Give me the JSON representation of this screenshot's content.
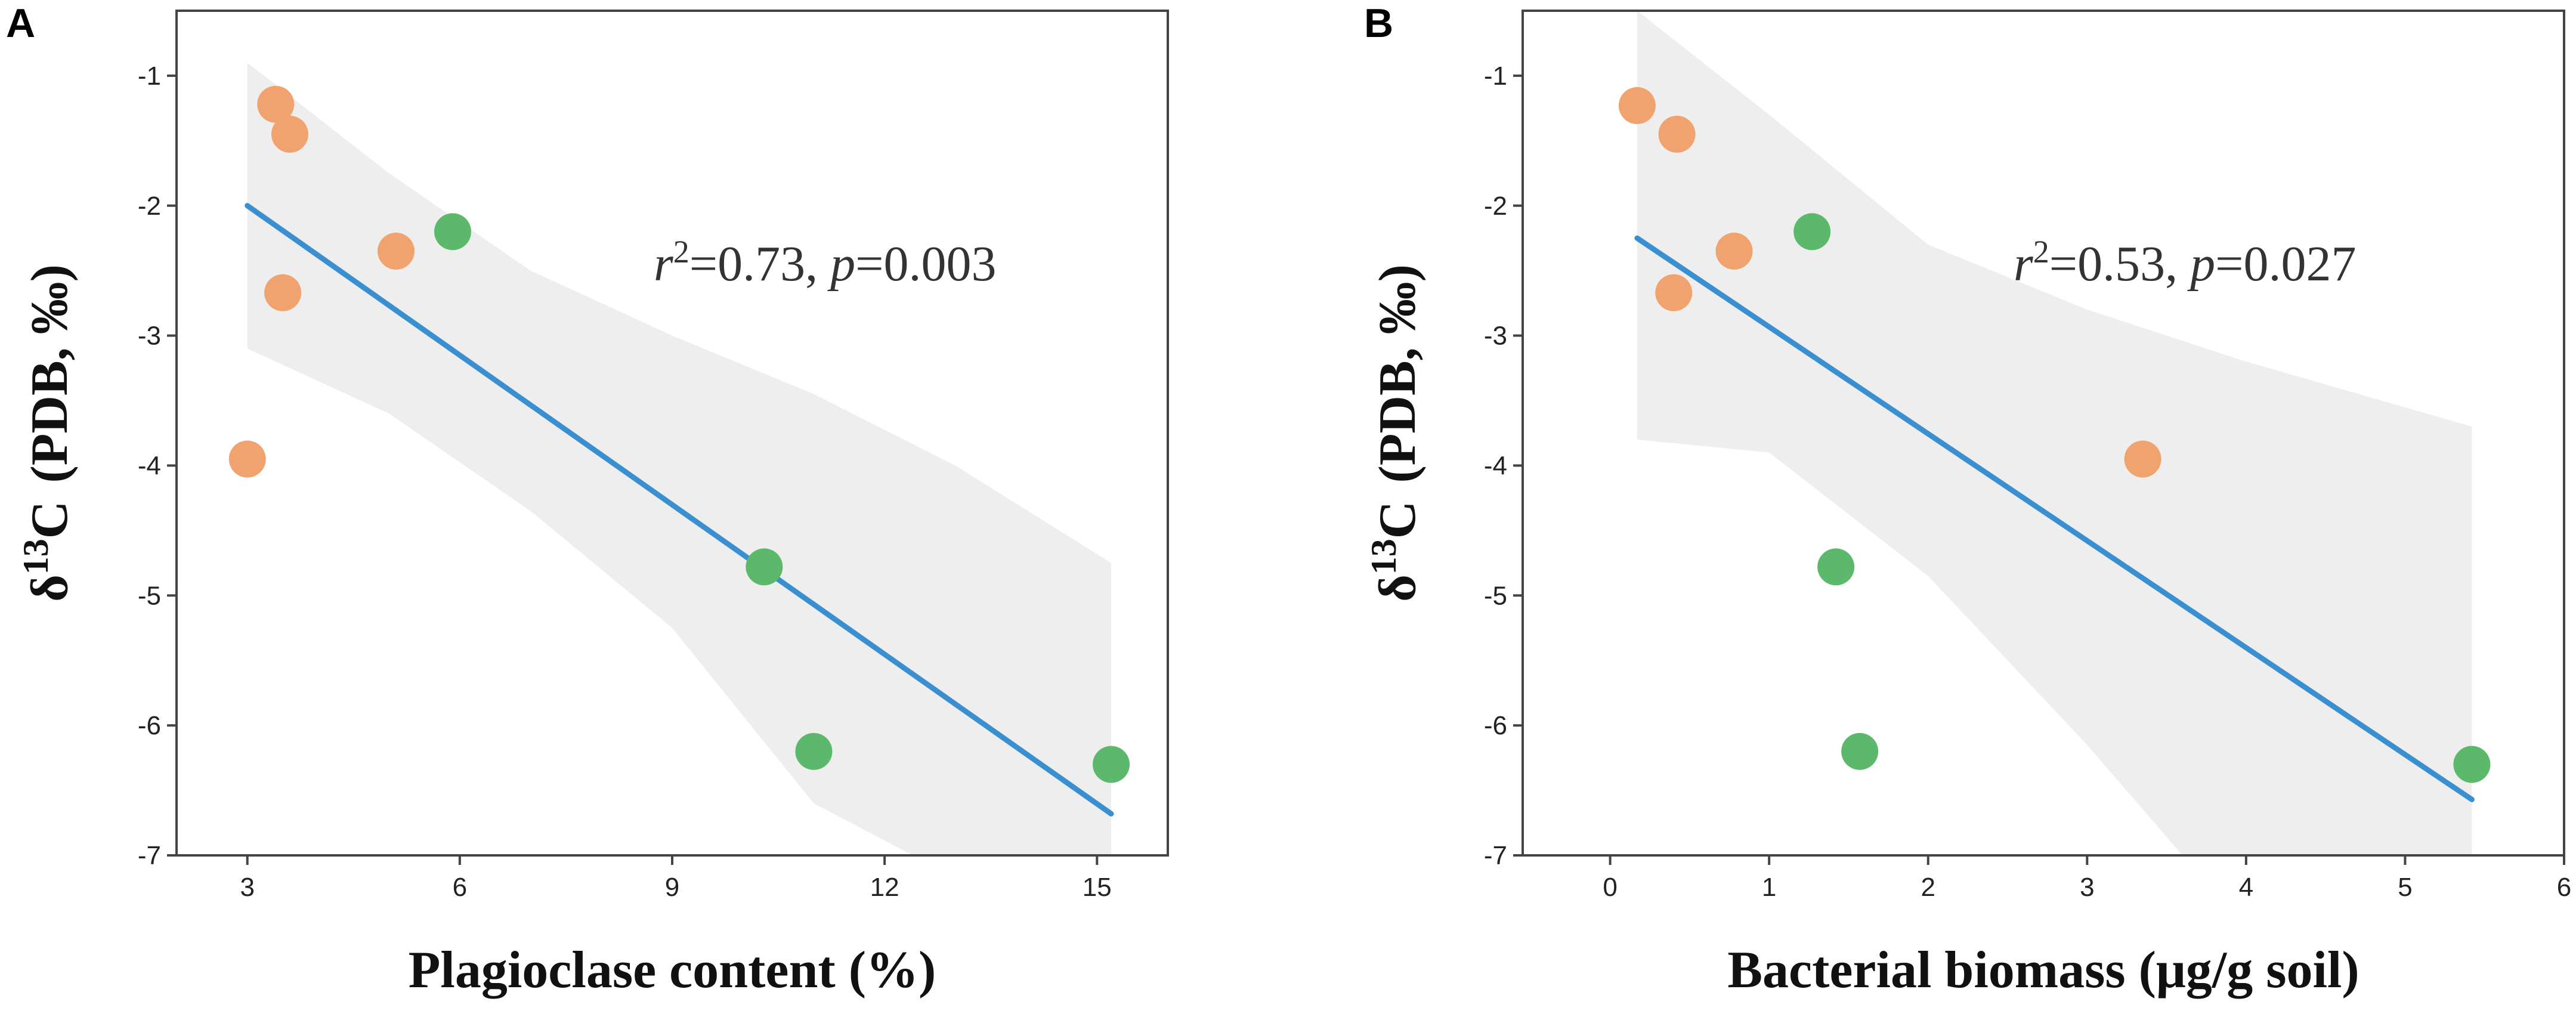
{
  "chart_data": [
    {
      "type": "scatter",
      "panel_label": "A",
      "xlabel": "Plagioclase content (%)",
      "ylabel_parts": {
        "delta": "δ",
        "superscript": "13",
        "element": "C",
        "units": "(PDB, ‰)"
      },
      "xlim": [
        2.0,
        16.0
      ],
      "ylim": [
        -7.0,
        -0.5
      ],
      "xticks": [
        3,
        6,
        9,
        12,
        15
      ],
      "yticks": [
        -1,
        -2,
        -3,
        -4,
        -5,
        -6,
        -7
      ],
      "annotation": {
        "r": "r",
        "exp": "2",
        "r_value": "=0.73, ",
        "p": "p",
        "p_value": "=0.003"
      },
      "series": [
        {
          "name": "orange",
          "color": "#F0A36E",
          "points": [
            [
              3.4,
              -1.22
            ],
            [
              3.6,
              -1.45
            ],
            [
              5.1,
              -2.35
            ],
            [
              3.5,
              -2.67
            ],
            [
              3.0,
              -3.95
            ]
          ]
        },
        {
          "name": "green",
          "color": "#5CB96C",
          "points": [
            [
              5.9,
              -2.2
            ],
            [
              10.3,
              -4.78
            ],
            [
              11.0,
              -6.2
            ],
            [
              15.2,
              -6.3
            ]
          ]
        }
      ],
      "fit_line": {
        "color": "#3A8FD0",
        "x": [
          3.0,
          15.2
        ],
        "y": [
          -2.0,
          -6.68
        ]
      },
      "confidence_band": {
        "color": "#EEEEEE",
        "upper": [
          [
            3.0,
            -0.9
          ],
          [
            5.0,
            -1.75
          ],
          [
            7.0,
            -2.5
          ],
          [
            9.0,
            -3.0
          ],
          [
            11.0,
            -3.45
          ],
          [
            13.0,
            -4.0
          ],
          [
            15.2,
            -4.75
          ]
        ],
        "lower": [
          [
            15.2,
            -7.0
          ],
          [
            12.4,
            -7.0
          ],
          [
            11.0,
            -6.6
          ],
          [
            9.0,
            -5.25
          ],
          [
            7.0,
            -4.35
          ],
          [
            5.0,
            -3.6
          ],
          [
            3.0,
            -3.1
          ]
        ]
      }
    },
    {
      "type": "scatter",
      "panel_label": "B",
      "xlabel": "Bacterial biomass (μg/g soil)",
      "ylabel_parts": {
        "delta": "δ",
        "superscript": "13",
        "element": "C",
        "units": "(PDB, ‰)"
      },
      "xlim": [
        -0.55,
        6.0
      ],
      "ylim": [
        -7.0,
        -0.5
      ],
      "xticks": [
        0,
        1,
        2,
        3,
        4,
        5,
        6
      ],
      "yticks": [
        -1,
        -2,
        -3,
        -4,
        -5,
        -6,
        -7
      ],
      "annotation": {
        "r": "r",
        "exp": "2",
        "r_value": "=0.53, ",
        "p": "p",
        "p_value": "=0.027"
      },
      "series": [
        {
          "name": "orange",
          "color": "#F0A36E",
          "points": [
            [
              0.17,
              -1.23
            ],
            [
              0.42,
              -1.45
            ],
            [
              0.78,
              -2.35
            ],
            [
              0.4,
              -2.67
            ],
            [
              3.35,
              -3.95
            ]
          ]
        },
        {
          "name": "green",
          "color": "#5CB96C",
          "points": [
            [
              1.27,
              -2.2
            ],
            [
              1.42,
              -4.78
            ],
            [
              1.57,
              -6.2
            ],
            [
              5.42,
              -6.3
            ]
          ]
        }
      ],
      "fit_line": {
        "color": "#3A8FD0",
        "x": [
          0.17,
          5.42
        ],
        "y": [
          -2.25,
          -6.57
        ]
      },
      "confidence_band": {
        "color": "#EEEEEE",
        "upper": [
          [
            0.17,
            -0.5
          ],
          [
            1.0,
            -1.3
          ],
          [
            2.0,
            -2.3
          ],
          [
            3.0,
            -2.8
          ],
          [
            4.0,
            -3.2
          ],
          [
            5.42,
            -3.7
          ]
        ],
        "lower": [
          [
            5.42,
            -7.0
          ],
          [
            3.6,
            -7.0
          ],
          [
            3.0,
            -6.15
          ],
          [
            2.0,
            -4.85
          ],
          [
            1.0,
            -3.9
          ],
          [
            0.17,
            -3.8
          ]
        ]
      }
    }
  ]
}
